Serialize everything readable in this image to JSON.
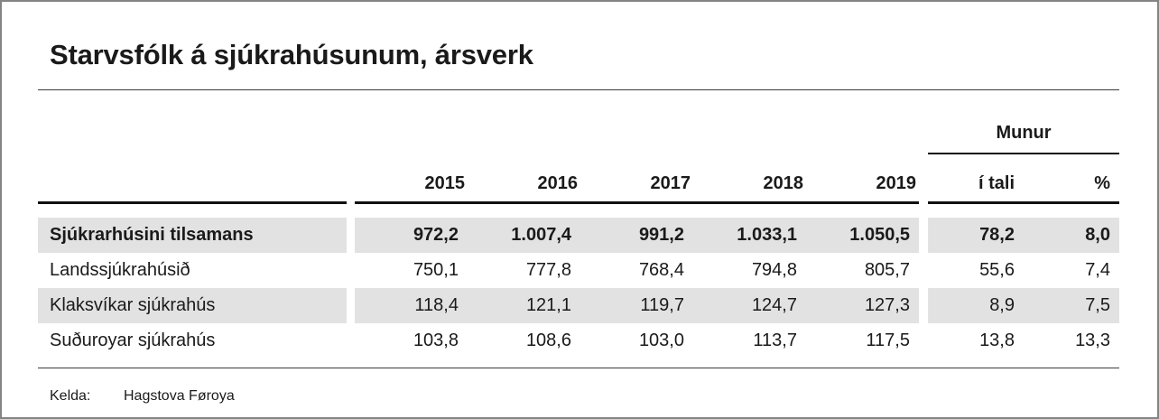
{
  "chart_data": {
    "type": "table",
    "title": "Starvsfólk á sjúkrahúsunum, ársverk",
    "group_header": "Munur",
    "columns": [
      "2015",
      "2016",
      "2017",
      "2018",
      "2019",
      "í tali",
      "%"
    ],
    "rows": [
      {
        "label": "Sjúkrarhúsini tilsamans",
        "emphasis": true,
        "values": [
          "972,2",
          "1.007,4",
          "991,2",
          "1.033,1",
          "1.050,5",
          "78,2",
          "8,0"
        ]
      },
      {
        "label": "Landssjúkrahúsið",
        "emphasis": false,
        "values": [
          "750,1",
          "777,8",
          "768,4",
          "794,8",
          "805,7",
          "55,6",
          "7,4"
        ]
      },
      {
        "label": "Klaksvíkar sjúkrahús",
        "emphasis": false,
        "values": [
          "118,4",
          "121,1",
          "119,7",
          "124,7",
          "127,3",
          "8,9",
          "7,5"
        ]
      },
      {
        "label": "Suðuroyar sjúkrahús",
        "emphasis": false,
        "values": [
          "103,8",
          "108,6",
          "103,0",
          "113,7",
          "117,5",
          "13,8",
          "13,3"
        ]
      }
    ],
    "source_label": "Kelda:",
    "source_value": "Hagstova Føroya",
    "layout": {
      "striped_rows": [
        0,
        2
      ],
      "numbers_aligned": "right"
    }
  },
  "colors": {
    "stripe": "#e2e2e2",
    "text": "#1a1a1a",
    "rule_thin": "#3c3c3c",
    "rule_thick": "#111111",
    "outer_border": "#848484"
  }
}
